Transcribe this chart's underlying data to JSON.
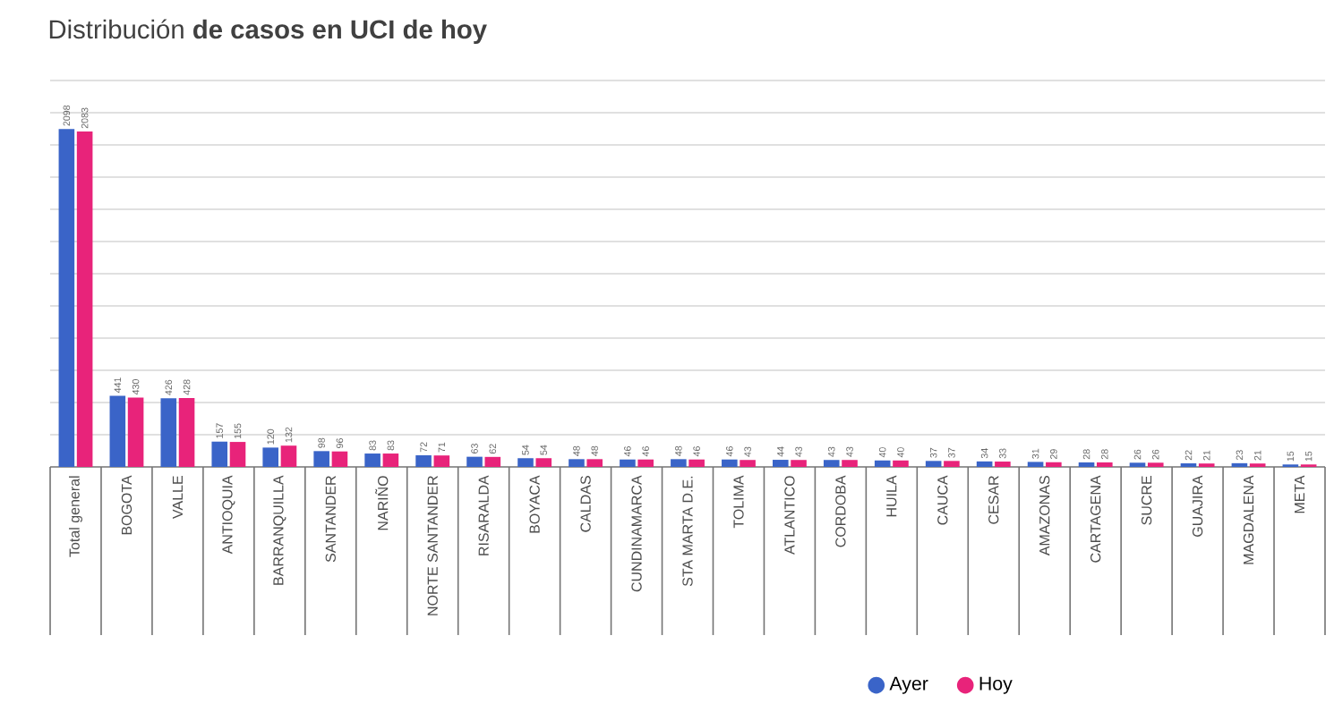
{
  "chart_data": {
    "type": "bar",
    "title": "Distribución **de casos en UCI de hoy**",
    "categories": [
      "Total general",
      "BOGOTA",
      "VALLE",
      "ANTIOQUIA",
      "BARRANQUILLA",
      "SANTANDER",
      "NARIÑO",
      "NORTE SANTANDER",
      "RISARALDA",
      "BOYACA",
      "CALDAS",
      "CUNDINAMARCA",
      "STA MARTA D.E.",
      "TOLIMA",
      "ATLANTICO",
      "CORDOBA",
      "HUILA",
      "CAUCA",
      "CESAR",
      "AMAZONAS",
      "CARTAGENA",
      "SUCRE",
      "GUAJIRA",
      "MAGDALENA",
      "META"
    ],
    "series": [
      {
        "name": "Ayer",
        "color": "#3a64c8",
        "values": [
          2098,
          441,
          426,
          157,
          120,
          98,
          83,
          72,
          63,
          54,
          48,
          46,
          48,
          46,
          44,
          43,
          40,
          37,
          34,
          31,
          28,
          26,
          22,
          23,
          15
        ]
      },
      {
        "name": "Hoy",
        "color": "#e8237a",
        "values": [
          2083,
          430,
          428,
          155,
          132,
          96,
          83,
          71,
          62,
          54,
          48,
          46,
          46,
          43,
          43,
          43,
          40,
          37,
          33,
          29,
          28,
          26,
          21,
          21,
          15
        ]
      }
    ],
    "ylim": [
      0,
      2400
    ],
    "yticks": [
      {
        "value": 0,
        "label": null
      },
      {
        "value": 200,
        "label": null
      },
      {
        "value": 400,
        "label": null
      },
      {
        "value": 600,
        "label": null
      },
      {
        "value": 800,
        "label": null
      },
      {
        "value": 1000,
        "label": null
      },
      {
        "value": 1200,
        "label": null
      },
      {
        "value": 1400,
        "label": null
      },
      {
        "value": 1600,
        "label": null
      },
      {
        "value": 1800,
        "label": null
      },
      {
        "value": 2000,
        "label": null
      },
      {
        "value": 2200,
        "label": null
      },
      {
        "value": 2400,
        "label": null
      }
    ],
    "tick_labels": "x",
    "grid": "y",
    "data_labels": true,
    "legend": "bottom right"
  }
}
